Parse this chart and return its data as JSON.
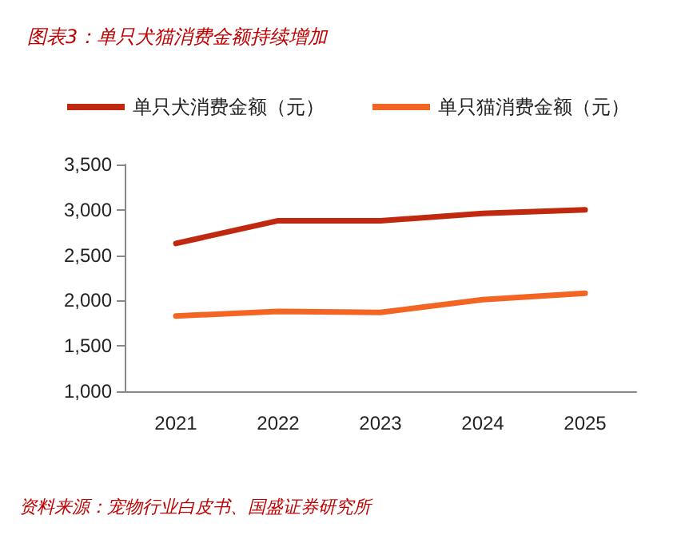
{
  "chart_data": {
    "type": "line",
    "title": "图表3：单只犬猫消费金额持续增加",
    "annotations": [
      "资料来源：宠物行业白皮书、国盛证券研究所"
    ],
    "categories": [
      "2021",
      "2022",
      "2023",
      "2024",
      "2025"
    ],
    "series": [
      {
        "name": "单只犬消费金额（元）",
        "color": "#c0280f",
        "values": [
          2630,
          2880,
          2880,
          2960,
          3000
        ]
      },
      {
        "name": "单只猫消费金额（元）",
        "color": "#f26522",
        "values": [
          1830,
          1880,
          1870,
          2010,
          2080
        ]
      }
    ],
    "ylim": [
      1000,
      3500
    ],
    "yticks": [
      {
        "value": 1000,
        "label": "1,000"
      },
      {
        "value": 1500,
        "label": "1,500"
      },
      {
        "value": 2000,
        "label": "2,000"
      },
      {
        "value": 2500,
        "label": "2,500"
      },
      {
        "value": 3000,
        "label": "3,000"
      },
      {
        "value": 3500,
        "label": "3,500"
      }
    ],
    "grid": false,
    "legend": "top",
    "marker": "none",
    "line_style": "solid"
  }
}
